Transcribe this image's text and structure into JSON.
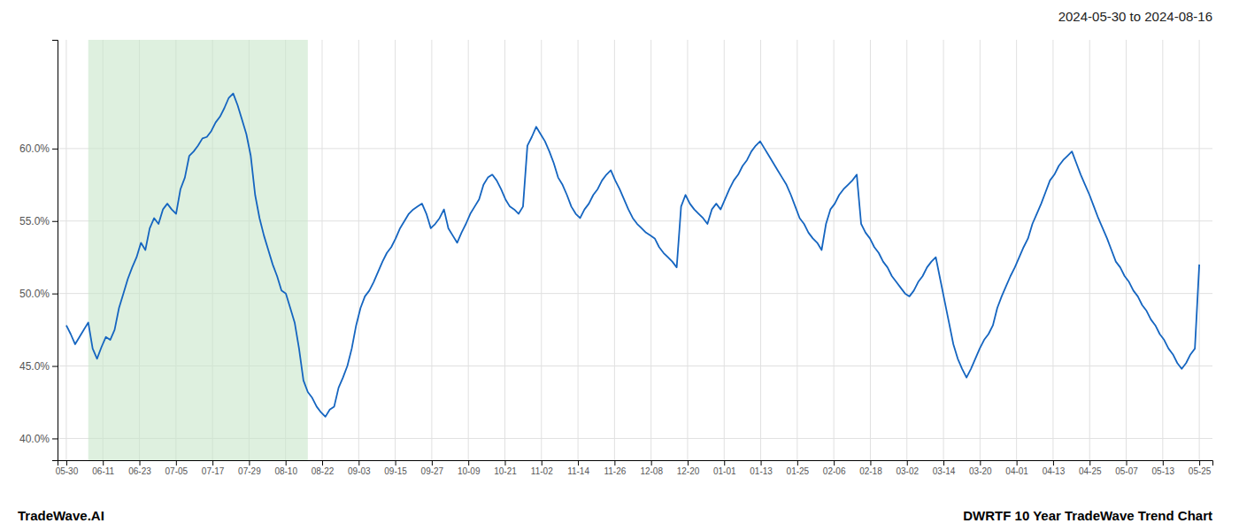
{
  "chart_data": {
    "type": "line",
    "title": "2024-05-30 to 2024-08-16",
    "annotations": [
      "TradeWave.AI",
      "DWRTF 10 Year TradeWave Trend Chart"
    ],
    "color": "#1565C0",
    "grid": true,
    "xlim": [
      -2,
      261
    ],
    "xticks": [
      {
        "value": 0,
        "label": "05-30"
      },
      {
        "value": 8.3225806452,
        "label": "06-11"
      },
      {
        "value": 16.6451612903,
        "label": "06-23"
      },
      {
        "value": 24.9677419355,
        "label": "07-05"
      },
      {
        "value": 33.2903225806,
        "label": "07-17"
      },
      {
        "value": 41.6129032258,
        "label": "07-29"
      },
      {
        "value": 49.935483871,
        "label": "08-10"
      },
      {
        "value": 58.2580645161,
        "label": "08-22"
      },
      {
        "value": 66.5806451613,
        "label": "09-03"
      },
      {
        "value": 74.9032258065,
        "label": "09-15"
      },
      {
        "value": 83.2258064516,
        "label": "09-27"
      },
      {
        "value": 91.5483870968,
        "label": "10-09"
      },
      {
        "value": 99.8709677419,
        "label": "10-21"
      },
      {
        "value": 108.1935483871,
        "label": "11-02"
      },
      {
        "value": 116.5161290323,
        "label": "11-14"
      },
      {
        "value": 124.8387096774,
        "label": "11-26"
      },
      {
        "value": 133.1612903226,
        "label": "12-08"
      },
      {
        "value": 141.4838709677,
        "label": "12-20"
      },
      {
        "value": 149.8064516129,
        "label": "01-01"
      },
      {
        "value": 158.1290322581,
        "label": "01-13"
      },
      {
        "value": 166.4516129032,
        "label": "01-25"
      },
      {
        "value": 174.7741935484,
        "label": "02-06"
      },
      {
        "value": 183.0967741935,
        "label": "02-18"
      },
      {
        "value": 191.4193548387,
        "label": "03-02"
      },
      {
        "value": 199.7419354839,
        "label": "03-14"
      },
      {
        "value": 208.064516129,
        "label": "03-20"
      },
      {
        "value": 216.3870967742,
        "label": "04-01"
      },
      {
        "value": 224.7096774194,
        "label": "04-13"
      },
      {
        "value": 233.0322580645,
        "label": "04-25"
      },
      {
        "value": 241.3548387097,
        "label": "05-07"
      },
      {
        "value": 249.6774193548,
        "label": "05-13"
      },
      {
        "value": 258,
        "label": "05-25"
      }
    ],
    "ylim": [
      0.385,
      0.675
    ],
    "yticks": [
      {
        "value": 0.4,
        "label": "40.0%"
      },
      {
        "value": 0.45,
        "label": "45.0%"
      },
      {
        "value": 0.5,
        "label": "50.0%"
      },
      {
        "value": 0.55,
        "label": "55.0%"
      },
      {
        "value": 0.6,
        "label": "60.0%"
      }
    ],
    "shaded_range": {
      "start": 5,
      "end": 55,
      "color": "#c8e6c9"
    },
    "values": [
      0.478,
      0.472,
      0.465,
      0.47,
      0.475,
      0.48,
      0.462,
      0.455,
      0.463,
      0.47,
      0.468,
      0.475,
      0.49,
      0.5,
      0.51,
      0.518,
      0.525,
      0.535,
      0.53,
      0.545,
      0.552,
      0.548,
      0.558,
      0.562,
      0.558,
      0.555,
      0.572,
      0.58,
      0.595,
      0.598,
      0.602,
      0.607,
      0.608,
      0.612,
      0.618,
      0.622,
      0.628,
      0.635,
      0.638,
      0.63,
      0.62,
      0.61,
      0.595,
      0.568,
      0.552,
      0.54,
      0.53,
      0.52,
      0.512,
      0.502,
      0.5,
      0.49,
      0.48,
      0.462,
      0.44,
      0.432,
      0.428,
      0.422,
      0.418,
      0.415,
      0.42,
      0.422,
      0.435,
      0.442,
      0.45,
      0.462,
      0.478,
      0.49,
      0.498,
      0.502,
      0.508,
      0.515,
      0.522,
      0.528,
      0.532,
      0.538,
      0.545,
      0.55,
      0.555,
      0.558,
      0.56,
      0.562,
      0.555,
      0.545,
      0.548,
      0.552,
      0.558,
      0.545,
      0.54,
      0.535,
      0.542,
      0.548,
      0.555,
      0.56,
      0.565,
      0.575,
      0.58,
      0.582,
      0.578,
      0.572,
      0.565,
      0.56,
      0.558,
      0.555,
      0.56,
      0.602,
      0.608,
      0.615,
      0.61,
      0.605,
      0.598,
      0.59,
      0.58,
      0.575,
      0.568,
      0.56,
      0.555,
      0.552,
      0.558,
      0.562,
      0.568,
      0.572,
      0.578,
      0.582,
      0.585,
      0.578,
      0.572,
      0.565,
      0.558,
      0.552,
      0.548,
      0.545,
      0.542,
      0.54,
      0.538,
      0.532,
      0.528,
      0.525,
      0.522,
      0.518,
      0.56,
      0.568,
      0.562,
      0.558,
      0.555,
      0.552,
      0.548,
      0.558,
      0.562,
      0.558,
      0.565,
      0.572,
      0.578,
      0.582,
      0.588,
      0.592,
      0.598,
      0.602,
      0.605,
      0.6,
      0.595,
      0.59,
      0.585,
      0.58,
      0.575,
      0.568,
      0.56,
      0.552,
      0.548,
      0.542,
      0.538,
      0.535,
      0.53,
      0.548,
      0.558,
      0.562,
      0.568,
      0.572,
      0.575,
      0.578,
      0.582,
      0.548,
      0.542,
      0.538,
      0.532,
      0.528,
      0.522,
      0.518,
      0.512,
      0.508,
      0.504,
      0.5,
      0.498,
      0.502,
      0.508,
      0.512,
      0.518,
      0.522,
      0.525,
      0.51,
      0.495,
      0.48,
      0.465,
      0.455,
      0.448,
      0.442,
      0.448,
      0.455,
      0.462,
      0.468,
      0.472,
      0.478,
      0.49,
      0.498,
      0.505,
      0.512,
      0.518,
      0.525,
      0.532,
      0.538,
      0.548,
      0.555,
      0.562,
      0.57,
      0.578,
      0.582,
      0.588,
      0.592,
      0.595,
      0.598,
      0.59,
      0.582,
      0.575,
      0.568,
      0.56,
      0.552,
      0.545,
      0.538,
      0.53,
      0.522,
      0.518,
      0.512,
      0.508,
      0.502,
      0.498,
      0.492,
      0.488,
      0.482,
      0.478,
      0.472,
      0.468,
      0.462,
      0.458,
      0.452,
      0.448,
      0.452,
      0.458,
      0.462,
      0.52
    ]
  }
}
